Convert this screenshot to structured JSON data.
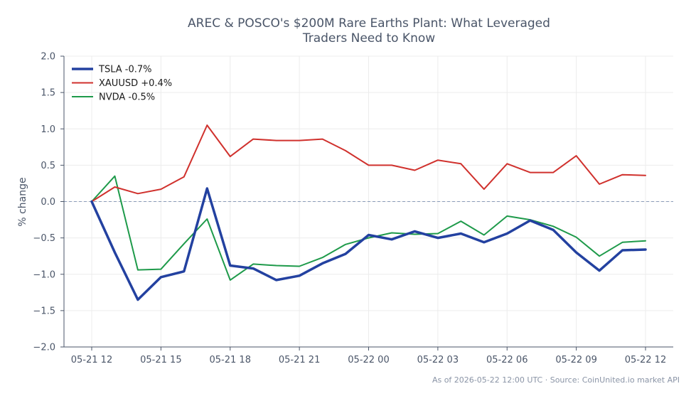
{
  "chart_data": {
    "type": "line",
    "title": "AREC & POSCO's $200M Rare Earths Plant: What Leveraged\nTraders Need to Know",
    "xlabel": "",
    "ylabel": "% change",
    "ylim": [
      -2.0,
      2.0
    ],
    "yticks": [
      2.0,
      1.5,
      1.0,
      0.5,
      0.0,
      -0.5,
      -1.0,
      -1.5,
      -2.0
    ],
    "ytick_labels": [
      "2.0",
      "1.5",
      "1.0",
      "0.5",
      "0.0",
      "−0.5",
      "−1.0",
      "−1.5",
      "−2.0"
    ],
    "x": [
      "2026-05-21 12:00",
      "2026-05-21 13:00",
      "2026-05-21 14:00",
      "2026-05-21 15:00",
      "2026-05-21 16:00",
      "2026-05-21 17:00",
      "2026-05-21 18:00",
      "2026-05-21 19:00",
      "2026-05-21 20:00",
      "2026-05-21 21:00",
      "2026-05-21 22:00",
      "2026-05-21 23:00",
      "2026-05-22 00:00",
      "2026-05-22 01:00",
      "2026-05-22 02:00",
      "2026-05-22 03:00",
      "2026-05-22 04:00",
      "2026-05-22 05:00",
      "2026-05-22 06:00",
      "2026-05-22 07:00",
      "2026-05-22 08:00",
      "2026-05-22 09:00",
      "2026-05-22 10:00",
      "2026-05-22 11:00",
      "2026-05-22 12:00"
    ],
    "xtick_labels": [
      "05-21 12",
      "05-21 15",
      "05-21 18",
      "05-21 21",
      "05-22 00",
      "05-22 03",
      "05-22 06",
      "05-22 09",
      "05-22 12"
    ],
    "xtick_positions": [
      "2026-05-21 12:00",
      "2026-05-21 15:00",
      "2026-05-21 18:00",
      "2026-05-21 21:00",
      "2026-05-22 00:00",
      "2026-05-22 03:00",
      "2026-05-22 06:00",
      "2026-05-22 09:00",
      "2026-05-22 12:00"
    ],
    "series": [
      {
        "name": "TSLA -0.7%",
        "color": "#2341a0",
        "values": [
          0.0,
          -0.7,
          -1.35,
          -1.04,
          -0.96,
          0.18,
          -0.88,
          -0.92,
          -1.08,
          -1.02,
          -0.85,
          -0.72,
          -0.46,
          -0.52,
          -0.41,
          -0.5,
          -0.44,
          -0.56,
          -0.44,
          -0.26,
          -0.39,
          -0.7,
          -0.95,
          -0.67,
          -0.66
        ]
      },
      {
        "name": "XAUUSD +0.4%",
        "color": "#d0312d",
        "values": [
          0.0,
          0.2,
          0.11,
          0.17,
          0.34,
          1.05,
          0.62,
          0.86,
          0.84,
          0.84,
          0.86,
          0.7,
          0.5,
          0.5,
          0.43,
          0.57,
          0.52,
          0.17,
          0.52,
          0.4,
          0.4,
          0.63,
          0.24,
          0.37,
          0.36
        ]
      },
      {
        "name": "NVDA -0.5%",
        "color": "#1e9a4a",
        "values": [
          0.0,
          0.35,
          -0.94,
          -0.93,
          -0.58,
          -0.24,
          -1.08,
          -0.86,
          -0.88,
          -0.89,
          -0.77,
          -0.59,
          -0.5,
          -0.43,
          -0.45,
          -0.44,
          -0.27,
          -0.46,
          -0.2,
          -0.25,
          -0.34,
          -0.49,
          -0.75,
          -0.56,
          -0.54
        ]
      }
    ],
    "reference_line": {
      "y": 0.0,
      "style": "dashed"
    },
    "grid": true,
    "legend_position": "top-left"
  },
  "footer": {
    "source_text": "As of 2026-05-22 12:00 UTC · Source: CoinUnited.io market API"
  },
  "colors": {
    "axis": "#4a5568",
    "grid": "#ececec",
    "zero_line": "#8a9bb8"
  }
}
